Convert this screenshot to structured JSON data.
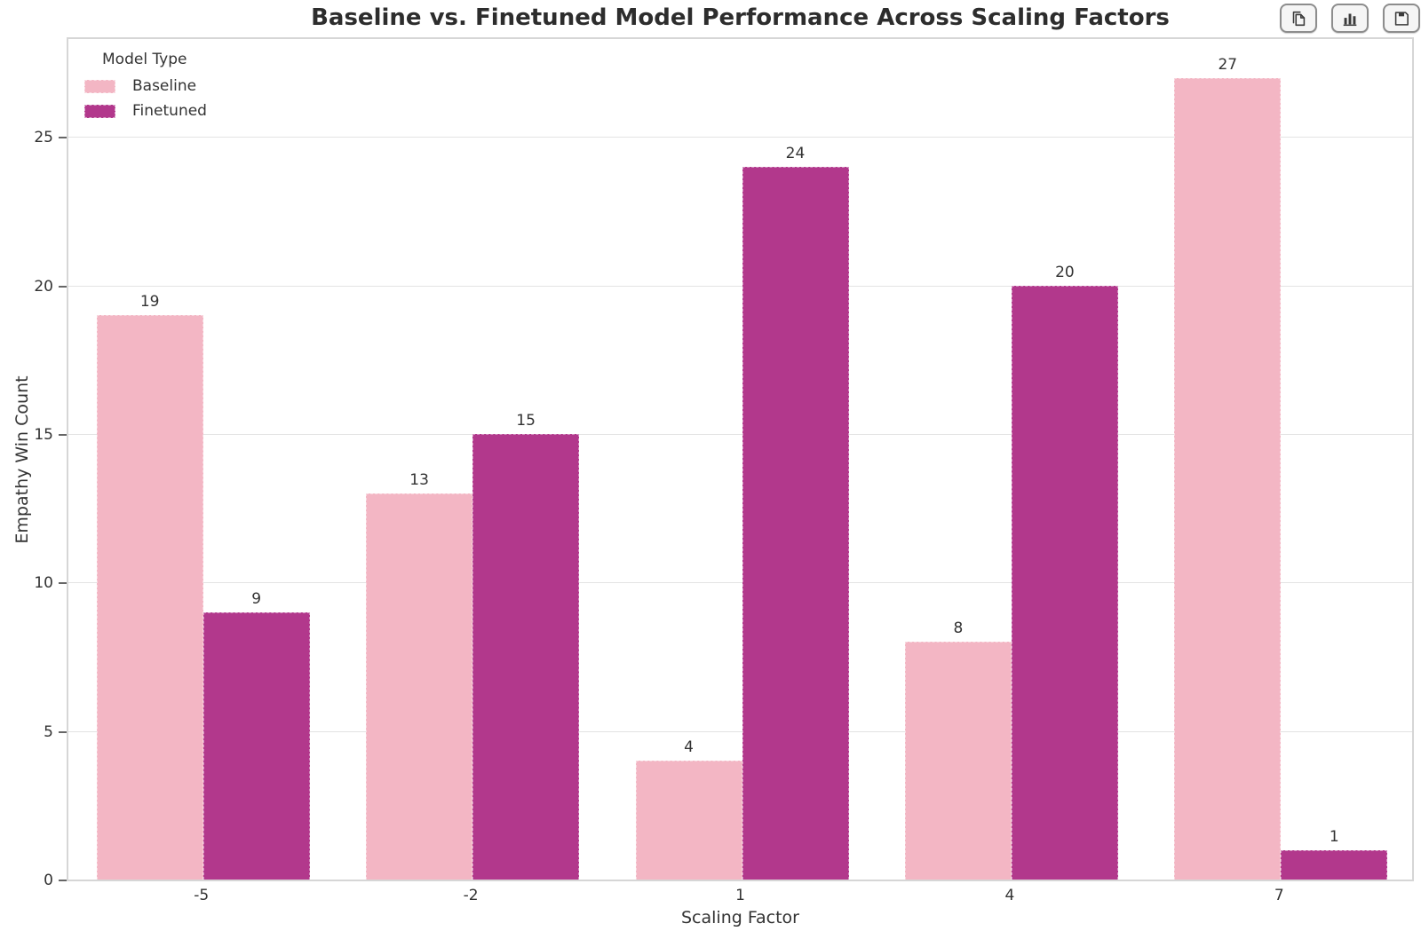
{
  "window": {
    "background": "#ffffff"
  },
  "toolbar": {
    "buttons": [
      {
        "id": "copy",
        "icon": "copy-icon"
      },
      {
        "id": "bar-chart",
        "icon": "bar-chart-icon"
      },
      {
        "id": "save",
        "icon": "save-icon"
      }
    ]
  },
  "chart_data": {
    "type": "bar",
    "title": "Baseline vs. Finetuned Model Performance Across Scaling Factors",
    "xlabel": "Scaling Factor",
    "ylabel": "Empathy Win Count",
    "categories": [
      "-5",
      "-2",
      "1",
      "4",
      "7"
    ],
    "series": [
      {
        "name": "Baseline",
        "color": "#f3b6c4",
        "values": [
          19,
          13,
          4,
          8,
          27
        ]
      },
      {
        "name": "Finetuned",
        "color": "#b2388c",
        "values": [
          9,
          15,
          24,
          20,
          1
        ]
      }
    ],
    "legend_title": "Model Type",
    "legend_position": "upper-left",
    "yticks": [
      0,
      5,
      10,
      15,
      20,
      25
    ],
    "ylim": [
      0,
      28.42
    ],
    "grid": "horizontal",
    "grid_color": "#e3e3e3",
    "bar_value_labels": true,
    "text_color": "#333333"
  }
}
